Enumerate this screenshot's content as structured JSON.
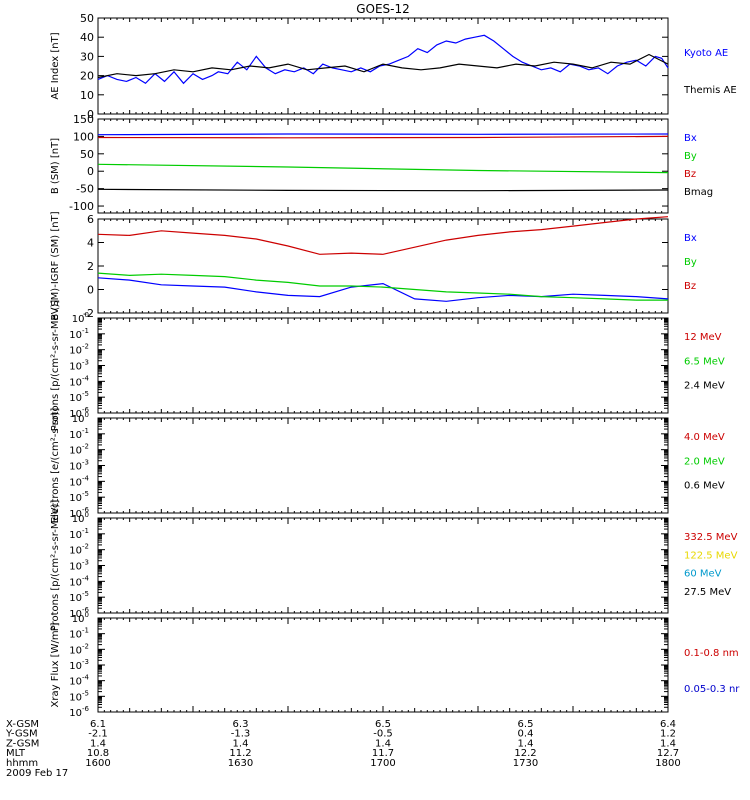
{
  "title": "GOES-12",
  "chart_data": [
    {
      "type": "line",
      "ylabel": "AE Index [nT]",
      "ylim": [
        0,
        50
      ],
      "yticks": [
        "0",
        "10",
        "20",
        "30",
        "40",
        "50"
      ],
      "series": [
        {
          "name": "Kyoto AE",
          "color": "#0000ff",
          "x": [
            0,
            3,
            6,
            9,
            12,
            15,
            18,
            21,
            24,
            27,
            30,
            33,
            36,
            38,
            41,
            44,
            47,
            50,
            53,
            56,
            59,
            62,
            65,
            68,
            71,
            74,
            77,
            80,
            83,
            86,
            89,
            92,
            95,
            98,
            101,
            104,
            107,
            110,
            113,
            116,
            119,
            122,
            125,
            128,
            131,
            134,
            137,
            140,
            143,
            146,
            149,
            152,
            155,
            158,
            161,
            164,
            167,
            170,
            173,
            176,
            178,
            180
          ],
          "y": [
            18,
            20,
            18,
            17,
            19,
            16,
            21,
            17,
            22,
            16,
            21,
            18,
            20,
            22,
            21,
            27,
            23,
            30,
            24,
            21,
            23,
            22,
            24,
            21,
            26,
            24,
            23,
            22,
            24,
            22,
            25,
            26,
            28,
            30,
            34,
            32,
            36,
            38,
            37,
            39,
            40,
            41,
            38,
            34,
            30,
            27,
            25,
            23,
            24,
            22,
            26,
            25,
            23,
            24,
            21,
            25,
            27,
            28,
            25,
            30,
            29,
            24
          ]
        },
        {
          "name": "Themis AE",
          "color": "#000000",
          "x": [
            0,
            6,
            12,
            18,
            24,
            30,
            36,
            42,
            48,
            54,
            60,
            66,
            72,
            78,
            84,
            90,
            96,
            102,
            108,
            114,
            120,
            126,
            132,
            138,
            144,
            150,
            156,
            162,
            168,
            174,
            180
          ],
          "y": [
            19,
            21,
            20,
            21,
            23,
            22,
            24,
            23,
            25,
            24,
            26,
            23,
            24,
            25,
            22,
            26,
            24,
            23,
            24,
            26,
            25,
            24,
            26,
            25,
            27,
            26,
            24,
            27,
            26,
            31,
            26
          ]
        }
      ]
    },
    {
      "type": "line",
      "ylabel": "B (SM) [nT]",
      "ylim": [
        -120,
        150
      ],
      "yticks": [
        "-100",
        "-50",
        "0",
        "50",
        "100",
        "150"
      ],
      "series": [
        {
          "name": "Bx",
          "color": "#0000ff",
          "x": [
            0,
            60,
            120,
            180
          ],
          "y": [
            105,
            107,
            106,
            107
          ]
        },
        {
          "name": "By",
          "color": "#00cc00",
          "x": [
            0,
            60,
            120,
            180
          ],
          "y": [
            20,
            12,
            2,
            -4
          ]
        },
        {
          "name": "Bz",
          "color": "#cc0000",
          "x": [
            0,
            60,
            120,
            180
          ],
          "y": [
            97,
            96,
            97,
            100
          ]
        },
        {
          "name": "Bmag",
          "color": "#000000",
          "x": [
            0,
            60,
            120,
            180
          ],
          "y": [
            -52,
            -55,
            -56,
            -54
          ]
        }
      ]
    },
    {
      "type": "line",
      "ylabel": "B (SM)-IGRF (SM) [nT]",
      "ylim": [
        -2,
        6
      ],
      "yticks": [
        "-2",
        "0",
        "2",
        "4",
        "6"
      ],
      "series": [
        {
          "name": "Bx",
          "color": "#0000ff",
          "x": [
            0,
            10,
            20,
            30,
            40,
            50,
            60,
            70,
            80,
            90,
            100,
            110,
            120,
            130,
            140,
            150,
            160,
            170,
            180
          ],
          "y": [
            1.0,
            0.8,
            0.4,
            0.3,
            0.2,
            -0.2,
            -0.5,
            -0.6,
            0.2,
            0.5,
            -0.8,
            -1.0,
            -0.7,
            -0.5,
            -0.6,
            -0.4,
            -0.5,
            -0.6,
            -0.8
          ]
        },
        {
          "name": "By",
          "color": "#00cc00",
          "x": [
            0,
            10,
            20,
            30,
            40,
            50,
            60,
            70,
            80,
            90,
            100,
            110,
            120,
            130,
            140,
            150,
            160,
            170,
            180
          ],
          "y": [
            1.4,
            1.2,
            1.3,
            1.2,
            1.1,
            0.8,
            0.6,
            0.3,
            0.3,
            0.2,
            0.0,
            -0.2,
            -0.3,
            -0.4,
            -0.6,
            -0.7,
            -0.8,
            -0.9,
            -0.9
          ]
        },
        {
          "name": "Bz",
          "color": "#cc0000",
          "x": [
            0,
            10,
            20,
            30,
            40,
            50,
            60,
            70,
            80,
            90,
            100,
            110,
            120,
            130,
            140,
            150,
            160,
            170,
            180
          ],
          "y": [
            4.7,
            4.6,
            5.0,
            4.8,
            4.6,
            4.3,
            3.7,
            3.0,
            3.1,
            3.0,
            3.6,
            4.2,
            4.6,
            4.9,
            5.1,
            5.4,
            5.7,
            6.0,
            6.2
          ]
        }
      ]
    },
    {
      "type": "line",
      "ylabel": "Protons [p/(cm²-s-sr-MeV)]",
      "log": true,
      "ylim": [
        1e-06,
        1
      ],
      "series": [],
      "legend": [
        {
          "name": "12 MeV",
          "color": "#cc0000"
        },
        {
          "name": "6.5 MeV",
          "color": "#00cc00"
        },
        {
          "name": "2.4 MeV",
          "color": "#000000"
        }
      ]
    },
    {
      "type": "line",
      "ylabel": "Electrons [e/(cm²-s-sr)]",
      "log": true,
      "ylim": [
        1e-06,
        1
      ],
      "series": [],
      "legend": [
        {
          "name": "4.0 MeV",
          "color": "#cc0000"
        },
        {
          "name": "2.0 MeV",
          "color": "#00cc00"
        },
        {
          "name": "0.6 MeV",
          "color": "#000000"
        }
      ]
    },
    {
      "type": "line",
      "ylabel": "Protons [p/(cm²-s-sr-MeV)]",
      "log": true,
      "ylim": [
        1e-06,
        1
      ],
      "series": [],
      "legend": [
        {
          "name": "332.5 MeV",
          "color": "#cc0000"
        },
        {
          "name": "122.5 MeV",
          "color": "#e8d800"
        },
        {
          "name": "60 MeV",
          "color": "#0099cc"
        },
        {
          "name": "27.5 MeV",
          "color": "#000000"
        }
      ]
    },
    {
      "type": "line",
      "ylabel": "Xray Flux [W/m²]",
      "log": true,
      "ylim": [
        1e-06,
        1
      ],
      "series": [],
      "legend": [
        {
          "name": "0.1-0.8 nm",
          "color": "#cc0000"
        },
        {
          "name": "0.05-0.3 nr",
          "color": "#0000cc"
        }
      ]
    }
  ],
  "x_axis": {
    "rows": [
      {
        "label": "X-GSM",
        "values": [
          "6.1",
          "6.3",
          "6.5",
          "6.5",
          "6.4"
        ]
      },
      {
        "label": "Y-GSM",
        "values": [
          "-2.1",
          "-1.3",
          "-0.5",
          "0.4",
          "1.2"
        ]
      },
      {
        "label": "Z-GSM",
        "values": [
          "1.4",
          "1.4",
          "1.4",
          "1.4",
          "1.4"
        ]
      },
      {
        "label": "MLT",
        "values": [
          "10.8",
          "11.2",
          "11.7",
          "12.2",
          "12.7"
        ]
      },
      {
        "label": "hhmm",
        "values": [
          "1600",
          "1630",
          "1700",
          "1730",
          "1800"
        ]
      }
    ],
    "date": "2009 Feb 17"
  }
}
